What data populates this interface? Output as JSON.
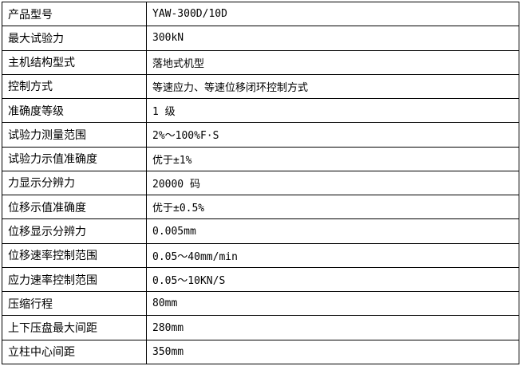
{
  "spec_table": {
    "rows": [
      {
        "label": "产品型号",
        "value": "YAW-300D/10D"
      },
      {
        "label": "最大试验力",
        "value": "300kN"
      },
      {
        "label": "主机结构型式",
        "value": "落地式机型"
      },
      {
        "label": "控制方式",
        "value": "等速应力、等速位移闭环控制方式"
      },
      {
        "label": "准确度等级",
        "value": "1 级"
      },
      {
        "label": "试验力测量范围",
        "value": "2%～100%F·S"
      },
      {
        "label": "试验力示值准确度",
        "value": "优于±1%"
      },
      {
        "label": "力显示分辨力",
        "value": "20000 码"
      },
      {
        "label": "位移示值准确度",
        "value": "优于±0.5%"
      },
      {
        "label": "位移显示分辨力",
        "value": "0.005mm"
      },
      {
        "label": "位移速率控制范围",
        "value": "0.05～40mm/min"
      },
      {
        "label": "应力速率控制范围",
        "value": "0.05～10KN/S"
      },
      {
        "label": "压缩行程",
        "value": "80mm"
      },
      {
        "label": "上下压盘最大间距",
        "value": "280mm"
      },
      {
        "label": "立柱中心间距",
        "value": "350mm"
      }
    ]
  }
}
